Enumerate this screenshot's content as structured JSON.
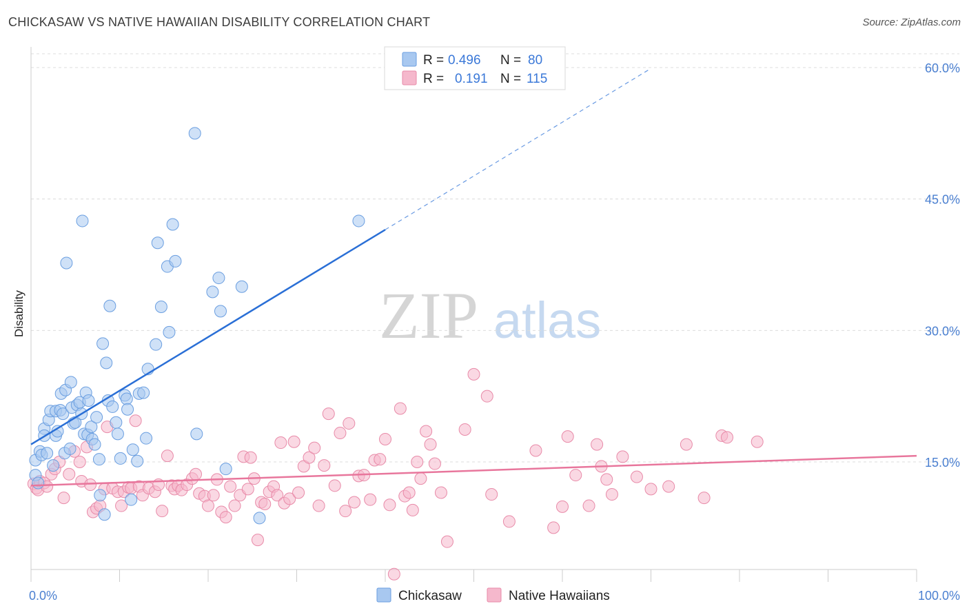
{
  "title": "CHICKASAW VS NATIVE HAWAIIAN DISABILITY CORRELATION CHART",
  "source": "Source: ZipAtlas.com",
  "watermark": {
    "zip": "ZIP",
    "atlas": "atlas"
  },
  "colors": {
    "blue_fill": "#a8c8f0",
    "blue_stroke": "#6a9ee0",
    "blue_line": "#2a6fd6",
    "pink_fill": "#f5b8cc",
    "pink_stroke": "#e88aa8",
    "pink_line": "#e8769c",
    "grid": "#dcdcdc",
    "tick_label": "#4a7fd0"
  },
  "legend": {
    "rows": [
      {
        "r_label": "R =",
        "r_value": "0.496",
        "n_label": "N =",
        "n_value": "80",
        "series": "blue"
      },
      {
        "r_label": "R =",
        "r_value": "0.191",
        "n_label": "N =",
        "n_value": "115",
        "series": "pink"
      }
    ]
  },
  "bottom_legend": [
    {
      "label": "Chickasaw",
      "series": "blue"
    },
    {
      "label": "Native Hawaiians",
      "series": "pink"
    }
  ],
  "chart_data": {
    "type": "scatter",
    "title": "CHICKASAW VS NATIVE HAWAIIAN DISABILITY CORRELATION CHART",
    "xlabel": "",
    "ylabel": "Disability",
    "xlim": [
      0,
      100
    ],
    "ylim": [
      0,
      63
    ],
    "x_tick_labels": [
      {
        "value": 0,
        "label": "0.0%"
      },
      {
        "value": 100,
        "label": "100.0%"
      }
    ],
    "y_tick_labels": [
      {
        "value": 15,
        "label": "15.0%"
      },
      {
        "value": 30,
        "label": "30.0%"
      },
      {
        "value": 45,
        "label": "45.0%"
      },
      {
        "value": 60,
        "label": "60.0%"
      }
    ],
    "grid": true,
    "legend_position": "top-center",
    "series": [
      {
        "name": "Chickasaw",
        "color": "#a8c8f0",
        "trend": {
          "x0": 0,
          "y0": 17.0,
          "x1": 40.0,
          "y1": 41.5,
          "dash_to_x": 70,
          "dash_to_y": 59.9
        },
        "points": [
          [
            0.5,
            13.5
          ],
          [
            0.5,
            15.2
          ],
          [
            0.8,
            12.6
          ],
          [
            1.0,
            16.2
          ],
          [
            1.2,
            15.8
          ],
          [
            1.5,
            18.8
          ],
          [
            1.5,
            18.0
          ],
          [
            1.8,
            16.0
          ],
          [
            2.0,
            19.8
          ],
          [
            2.2,
            20.8
          ],
          [
            2.5,
            14.6
          ],
          [
            2.8,
            18.0
          ],
          [
            2.8,
            20.8
          ],
          [
            3.0,
            18.5
          ],
          [
            3.3,
            20.9
          ],
          [
            3.4,
            22.8
          ],
          [
            3.6,
            20.5
          ],
          [
            3.8,
            16.0
          ],
          [
            3.9,
            23.2
          ],
          [
            4.0,
            37.7
          ],
          [
            4.4,
            16.5
          ],
          [
            4.5,
            24.1
          ],
          [
            4.6,
            21.2
          ],
          [
            4.8,
            19.4
          ],
          [
            5.0,
            19.5
          ],
          [
            5.2,
            21.5
          ],
          [
            5.5,
            21.8
          ],
          [
            5.7,
            20.5
          ],
          [
            5.8,
            42.5
          ],
          [
            6.0,
            18.2
          ],
          [
            6.2,
            22.9
          ],
          [
            6.4,
            18.1
          ],
          [
            6.5,
            22.0
          ],
          [
            6.8,
            19.0
          ],
          [
            6.9,
            17.6
          ],
          [
            7.2,
            17.0
          ],
          [
            7.4,
            20.1
          ],
          [
            7.7,
            15.3
          ],
          [
            7.8,
            11.2
          ],
          [
            8.1,
            28.5
          ],
          [
            8.3,
            9.0
          ],
          [
            8.5,
            26.3
          ],
          [
            8.7,
            22.0
          ],
          [
            8.9,
            32.8
          ],
          [
            9.2,
            21.3
          ],
          [
            9.6,
            19.5
          ],
          [
            9.8,
            18.2
          ],
          [
            10.1,
            15.4
          ],
          [
            10.6,
            22.6
          ],
          [
            10.8,
            22.2
          ],
          [
            10.9,
            21.0
          ],
          [
            11.3,
            10.7
          ],
          [
            11.5,
            16.4
          ],
          [
            12.0,
            15.1
          ],
          [
            12.2,
            22.8
          ],
          [
            12.7,
            22.9
          ],
          [
            13.0,
            17.7
          ],
          [
            13.2,
            25.6
          ],
          [
            14.1,
            28.4
          ],
          [
            14.3,
            40.0
          ],
          [
            14.7,
            32.7
          ],
          [
            15.6,
            29.8
          ],
          [
            15.4,
            37.3
          ],
          [
            16.0,
            42.1
          ],
          [
            16.3,
            37.9
          ],
          [
            18.5,
            52.5
          ],
          [
            18.7,
            18.2
          ],
          [
            20.5,
            34.4
          ],
          [
            21.2,
            36.0
          ],
          [
            21.4,
            32.2
          ],
          [
            22.0,
            14.2
          ],
          [
            23.8,
            35.0
          ],
          [
            25.8,
            8.6
          ],
          [
            37.0,
            42.5
          ]
        ]
      },
      {
        "name": "Native Hawaiians",
        "color": "#f5b8cc",
        "trend": {
          "x0": 0,
          "y0": 12.3,
          "x1": 100,
          "y1": 15.7
        },
        "points": [
          [
            0.3,
            12.5
          ],
          [
            0.6,
            12.0
          ],
          [
            0.8,
            11.8
          ],
          [
            1.0,
            12.8
          ],
          [
            1.5,
            12.6
          ],
          [
            1.8,
            12.2
          ],
          [
            2.3,
            13.6
          ],
          [
            2.7,
            14.2
          ],
          [
            3.2,
            15.0
          ],
          [
            3.7,
            10.9
          ],
          [
            4.3,
            13.6
          ],
          [
            4.9,
            16.2
          ],
          [
            5.5,
            15.0
          ],
          [
            5.7,
            12.8
          ],
          [
            6.3,
            16.7
          ],
          [
            6.7,
            12.4
          ],
          [
            7.0,
            9.3
          ],
          [
            7.4,
            9.7
          ],
          [
            7.8,
            10.0
          ],
          [
            8.3,
            11.9
          ],
          [
            8.6,
            19.0
          ],
          [
            9.2,
            12.0
          ],
          [
            9.8,
            11.6
          ],
          [
            10.2,
            10.0
          ],
          [
            10.5,
            11.6
          ],
          [
            11.0,
            12.1
          ],
          [
            11.3,
            12.0
          ],
          [
            11.8,
            19.7
          ],
          [
            12.2,
            12.2
          ],
          [
            12.6,
            11.2
          ],
          [
            13.3,
            12.0
          ],
          [
            14.0,
            11.6
          ],
          [
            14.4,
            12.4
          ],
          [
            14.8,
            9.4
          ],
          [
            15.4,
            15.7
          ],
          [
            15.9,
            12.3
          ],
          [
            16.2,
            11.9
          ],
          [
            16.6,
            12.3
          ],
          [
            17.0,
            11.8
          ],
          [
            17.6,
            12.4
          ],
          [
            18.2,
            13.1
          ],
          [
            18.6,
            13.6
          ],
          [
            19.0,
            11.4
          ],
          [
            19.6,
            11.1
          ],
          [
            20.0,
            10.0
          ],
          [
            20.6,
            11.2
          ],
          [
            21.0,
            13.0
          ],
          [
            21.5,
            9.3
          ],
          [
            22.0,
            8.7
          ],
          [
            22.5,
            12.2
          ],
          [
            23.0,
            10.0
          ],
          [
            23.6,
            11.2
          ],
          [
            24.0,
            15.6
          ],
          [
            24.5,
            11.9
          ],
          [
            24.8,
            15.5
          ],
          [
            25.2,
            13.1
          ],
          [
            25.6,
            6.1
          ],
          [
            26.0,
            10.4
          ],
          [
            26.4,
            10.2
          ],
          [
            26.9,
            11.6
          ],
          [
            27.4,
            12.2
          ],
          [
            27.8,
            11.2
          ],
          [
            28.2,
            17.2
          ],
          [
            28.6,
            10.3
          ],
          [
            29.2,
            10.8
          ],
          [
            29.7,
            17.3
          ],
          [
            30.2,
            11.5
          ],
          [
            30.8,
            14.5
          ],
          [
            31.4,
            15.5
          ],
          [
            32.0,
            16.6
          ],
          [
            32.5,
            10.0
          ],
          [
            33.1,
            14.6
          ],
          [
            33.6,
            20.5
          ],
          [
            34.3,
            12.3
          ],
          [
            34.9,
            18.3
          ],
          [
            35.5,
            9.4
          ],
          [
            35.9,
            19.4
          ],
          [
            36.5,
            10.4
          ],
          [
            37.0,
            13.4
          ],
          [
            37.6,
            13.5
          ],
          [
            38.3,
            10.7
          ],
          [
            38.8,
            15.2
          ],
          [
            39.4,
            15.3
          ],
          [
            40.0,
            17.6
          ],
          [
            40.5,
            10.1
          ],
          [
            41.0,
            2.2
          ],
          [
            41.7,
            21.1
          ],
          [
            42.2,
            11.1
          ],
          [
            42.7,
            11.5
          ],
          [
            43.1,
            9.5
          ],
          [
            43.6,
            15.0
          ],
          [
            44.0,
            13.1
          ],
          [
            44.6,
            18.5
          ],
          [
            45.1,
            17.0
          ],
          [
            45.6,
            14.8
          ],
          [
            46.3,
            11.5
          ],
          [
            47.0,
            5.9
          ],
          [
            49.0,
            18.7
          ],
          [
            50.0,
            25.0
          ],
          [
            51.5,
            22.5
          ],
          [
            52.0,
            11.3
          ],
          [
            54.0,
            8.2
          ],
          [
            57.0,
            16.3
          ],
          [
            59.0,
            7.5
          ],
          [
            60.0,
            9.9
          ],
          [
            60.6,
            17.9
          ],
          [
            61.5,
            13.5
          ],
          [
            63.0,
            10.0
          ],
          [
            63.9,
            17.0
          ],
          [
            64.4,
            14.5
          ],
          [
            65.0,
            13.0
          ],
          [
            65.6,
            11.3
          ],
          [
            66.8,
            15.6
          ],
          [
            68.4,
            13.3
          ],
          [
            70.0,
            11.9
          ],
          [
            72.0,
            12.2
          ],
          [
            74.0,
            17.0
          ],
          [
            76.0,
            10.9
          ],
          [
            78.0,
            18.0
          ],
          [
            78.6,
            17.8
          ],
          [
            82.0,
            17.3
          ]
        ]
      }
    ]
  }
}
